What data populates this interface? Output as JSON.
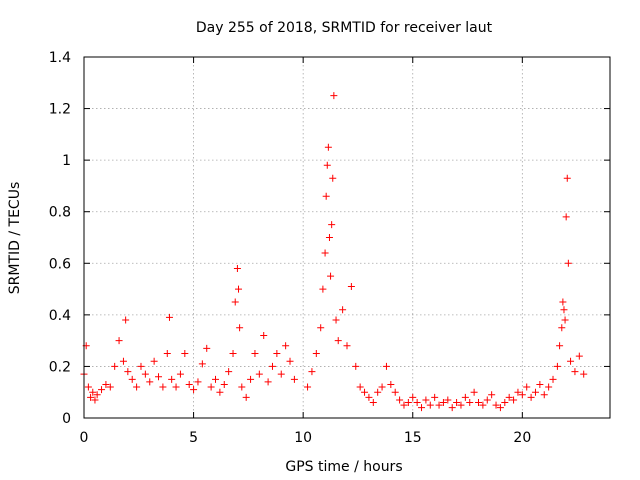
{
  "chart_data": {
    "type": "scatter",
    "title": "Day 255 of 2018, SRMTID for receiver laut",
    "xlabel": "GPS time / hours",
    "ylabel": "SRMTID / TECUs",
    "xlim": [
      0,
      24
    ],
    "ylim": [
      0,
      1.4
    ],
    "x_ticks": [
      0,
      5,
      10,
      15,
      20
    ],
    "x_tick_labels": [
      "0",
      "5",
      "10",
      "15",
      "20"
    ],
    "y_ticks": [
      0,
      0.2,
      0.4,
      0.6,
      0.8,
      1.0,
      1.2,
      1.4
    ],
    "y_tick_labels": [
      "0",
      "0.2",
      "0.4",
      "0.6",
      "0.8",
      "1",
      "1.2",
      "1.4"
    ],
    "grid": true,
    "marker": "+",
    "color": "#ff0000",
    "series": [
      {
        "name": "SRMTID",
        "x": [
          0.0,
          0.1,
          0.2,
          0.3,
          0.4,
          0.5,
          0.6,
          0.8,
          1.0,
          1.2,
          1.4,
          1.6,
          1.8,
          1.9,
          2.0,
          2.2,
          2.4,
          2.6,
          2.8,
          3.0,
          3.2,
          3.4,
          3.6,
          3.8,
          3.9,
          4.0,
          4.2,
          4.4,
          4.6,
          4.8,
          5.0,
          5.2,
          5.4,
          5.6,
          5.8,
          6.0,
          6.2,
          6.4,
          6.6,
          6.8,
          6.9,
          7.0,
          7.05,
          7.1,
          7.2,
          7.4,
          7.6,
          7.8,
          8.0,
          8.2,
          8.4,
          8.6,
          8.8,
          9.0,
          9.2,
          9.4,
          9.6,
          10.2,
          10.4,
          10.6,
          10.8,
          10.9,
          11.0,
          11.05,
          11.1,
          11.15,
          11.2,
          11.25,
          11.3,
          11.35,
          11.4,
          11.5,
          11.6,
          11.8,
          12.0,
          12.2,
          12.4,
          12.6,
          12.8,
          13.0,
          13.2,
          13.4,
          13.6,
          13.8,
          14.0,
          14.2,
          14.4,
          14.6,
          14.8,
          15.0,
          15.2,
          15.4,
          15.6,
          15.8,
          16.0,
          16.2,
          16.4,
          16.6,
          16.8,
          17.0,
          17.2,
          17.4,
          17.6,
          17.8,
          18.0,
          18.2,
          18.4,
          18.6,
          18.8,
          19.0,
          19.2,
          19.4,
          19.6,
          19.8,
          20.0,
          20.2,
          20.4,
          20.6,
          20.8,
          21.0,
          21.2,
          21.4,
          21.6,
          21.7,
          21.8,
          21.85,
          21.9,
          21.95,
          22.0,
          22.05,
          22.1,
          22.2,
          22.4,
          22.6,
          22.8
        ],
        "y": [
          0.17,
          0.28,
          0.12,
          0.08,
          0.1,
          0.07,
          0.09,
          0.11,
          0.13,
          0.12,
          0.2,
          0.3,
          0.22,
          0.38,
          0.18,
          0.15,
          0.12,
          0.2,
          0.17,
          0.14,
          0.22,
          0.16,
          0.12,
          0.25,
          0.39,
          0.15,
          0.12,
          0.17,
          0.25,
          0.13,
          0.11,
          0.14,
          0.21,
          0.27,
          0.12,
          0.15,
          0.1,
          0.13,
          0.18,
          0.25,
          0.45,
          0.58,
          0.5,
          0.35,
          0.12,
          0.08,
          0.15,
          0.25,
          0.17,
          0.32,
          0.14,
          0.2,
          0.25,
          0.17,
          0.28,
          0.22,
          0.15,
          0.12,
          0.18,
          0.25,
          0.35,
          0.5,
          0.64,
          0.86,
          0.98,
          1.05,
          0.7,
          0.55,
          0.75,
          0.93,
          1.25,
          0.38,
          0.3,
          0.42,
          0.28,
          0.51,
          0.2,
          0.12,
          0.1,
          0.08,
          0.06,
          0.1,
          0.12,
          0.2,
          0.13,
          0.1,
          0.07,
          0.05,
          0.06,
          0.08,
          0.06,
          0.04,
          0.07,
          0.05,
          0.08,
          0.05,
          0.06,
          0.07,
          0.04,
          0.06,
          0.05,
          0.08,
          0.06,
          0.1,
          0.06,
          0.05,
          0.07,
          0.09,
          0.05,
          0.04,
          0.06,
          0.08,
          0.07,
          0.1,
          0.09,
          0.12,
          0.08,
          0.1,
          0.13,
          0.09,
          0.12,
          0.15,
          0.2,
          0.28,
          0.35,
          0.45,
          0.42,
          0.38,
          0.78,
          0.93,
          0.6,
          0.22,
          0.18,
          0.24,
          0.17
        ]
      }
    ]
  }
}
